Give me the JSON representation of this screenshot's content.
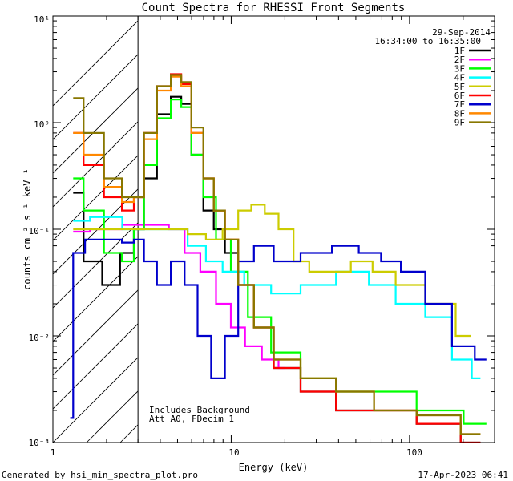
{
  "chart_data": {
    "type": "line",
    "title": "Count Spectra for RHESSI Front Segments",
    "xlabel": "Energy (keV)",
    "ylabel": "counts cm⁻² s⁻¹ keV⁻¹",
    "xscale": "log",
    "yscale": "log",
    "xlim": [
      1,
      300
    ],
    "ylim": [
      0.001,
      10
    ],
    "x_tick_labels": [
      "1",
      "10",
      "100"
    ],
    "y_tick_labels": [
      "10⁰",
      "10⁻¹",
      "10⁻²",
      "10⁻³",
      "10¹"
    ],
    "date_label": "29-Sep-2014",
    "time_range_label": "16:34:00 to 16:35:00",
    "annotations": [
      "Includes Background",
      "Att A0, FDecim 1"
    ],
    "shaded_region_below_keV": 3,
    "legend_position": "top-right",
    "series": [
      {
        "name": "1F",
        "color": "#000000",
        "points": [
          [
            1.3,
            0.22
          ],
          [
            1.7,
            0.05
          ],
          [
            2.1,
            0.03
          ],
          [
            2.7,
            0.06
          ],
          [
            3.0,
            0.1
          ],
          [
            3.5,
            0.3
          ],
          [
            4.2,
            1.2
          ],
          [
            5.0,
            1.75
          ],
          [
            5.5,
            1.5
          ],
          [
            6.5,
            0.5
          ],
          [
            7.5,
            0.15
          ],
          [
            8.5,
            0.1
          ],
          [
            10,
            0.06
          ],
          [
            12,
            0.03
          ],
          [
            15,
            0.012
          ],
          [
            20,
            0.005
          ],
          [
            30,
            0.003
          ],
          [
            50,
            0.002
          ],
          [
            80,
            0.002
          ],
          [
            150,
            0.0015
          ],
          [
            250,
            0.001
          ]
        ]
      },
      {
        "name": "2F",
        "color": "#ff00ff",
        "points": [
          [
            1.3,
            0.095
          ],
          [
            2.0,
            0.1
          ],
          [
            3.0,
            0.11
          ],
          [
            4.0,
            0.11
          ],
          [
            5.0,
            0.1
          ],
          [
            6.0,
            0.06
          ],
          [
            7.5,
            0.04
          ],
          [
            9.0,
            0.02
          ],
          [
            11,
            0.012
          ],
          [
            13,
            0.008
          ],
          [
            17,
            0.006
          ],
          [
            20,
            0.005
          ]
        ]
      },
      {
        "name": "3F",
        "color": "#00ff00",
        "points": [
          [
            1.3,
            0.3
          ],
          [
            1.7,
            0.15
          ],
          [
            2.2,
            0.06
          ],
          [
            2.7,
            0.05
          ],
          [
            3.0,
            0.1
          ],
          [
            3.5,
            0.4
          ],
          [
            4.2,
            1.1
          ],
          [
            5.0,
            1.65
          ],
          [
            5.5,
            1.4
          ],
          [
            6.5,
            0.5
          ],
          [
            7.5,
            0.2
          ],
          [
            9,
            0.08
          ],
          [
            11,
            0.04
          ],
          [
            14,
            0.015
          ],
          [
            20,
            0.007
          ],
          [
            30,
            0.004
          ],
          [
            50,
            0.003
          ],
          [
            80,
            0.003
          ],
          [
            150,
            0.002
          ],
          [
            270,
            0.0015
          ]
        ]
      },
      {
        "name": "4F",
        "color": "#00ffff",
        "points": [
          [
            1.3,
            0.12
          ],
          [
            2.0,
            0.13
          ],
          [
            3.0,
            0.1
          ],
          [
            4.0,
            0.1
          ],
          [
            5.0,
            0.1
          ],
          [
            6.5,
            0.07
          ],
          [
            8,
            0.05
          ],
          [
            10,
            0.04
          ],
          [
            14,
            0.03
          ],
          [
            20,
            0.025
          ],
          [
            30,
            0.03
          ],
          [
            50,
            0.04
          ],
          [
            70,
            0.03
          ],
          [
            100,
            0.02
          ],
          [
            150,
            0.015
          ],
          [
            200,
            0.006
          ],
          [
            250,
            0.004
          ]
        ]
      },
      {
        "name": "5F",
        "color": "#cccc00",
        "points": [
          [
            1.3,
            0.1
          ],
          [
            2.0,
            0.1
          ],
          [
            3.0,
            0.1
          ],
          [
            4.0,
            0.1
          ],
          [
            5.0,
            0.1
          ],
          [
            6.5,
            0.09
          ],
          [
            8,
            0.08
          ],
          [
            10,
            0.1
          ],
          [
            12,
            0.15
          ],
          [
            14,
            0.17
          ],
          [
            17,
            0.14
          ],
          [
            20,
            0.1
          ],
          [
            25,
            0.05
          ],
          [
            30,
            0.04
          ],
          [
            40,
            0.04
          ],
          [
            55,
            0.05
          ],
          [
            70,
            0.04
          ],
          [
            100,
            0.03
          ],
          [
            150,
            0.02
          ],
          [
            220,
            0.01
          ]
        ]
      },
      {
        "name": "6F",
        "color": "#ff0000",
        "points": [
          [
            1.3,
            0.8
          ],
          [
            1.7,
            0.4
          ],
          [
            2.2,
            0.2
          ],
          [
            2.7,
            0.15
          ],
          [
            3.0,
            0.2
          ],
          [
            3.5,
            0.8
          ],
          [
            4.2,
            2.2
          ],
          [
            5.0,
            2.85
          ],
          [
            5.5,
            2.3
          ],
          [
            6.5,
            0.8
          ],
          [
            7.5,
            0.3
          ],
          [
            8.5,
            0.15
          ],
          [
            10,
            0.08
          ],
          [
            12,
            0.03
          ],
          [
            15,
            0.012
          ],
          [
            20,
            0.005
          ],
          [
            30,
            0.003
          ],
          [
            50,
            0.002
          ],
          [
            80,
            0.002
          ],
          [
            150,
            0.0015
          ],
          [
            250,
            0.001
          ]
        ]
      },
      {
        "name": "7F",
        "color": "#0000cc",
        "points": [
          [
            1.25,
            0.0017
          ],
          [
            1.35,
            0.06
          ],
          [
            1.7,
            0.08
          ],
          [
            2.2,
            0.08
          ],
          [
            2.7,
            0.075
          ],
          [
            3.0,
            0.08
          ],
          [
            3.5,
            0.05
          ],
          [
            4.2,
            0.03
          ],
          [
            5.0,
            0.05
          ],
          [
            6,
            0.03
          ],
          [
            7,
            0.01
          ],
          [
            8.5,
            0.004
          ],
          [
            10,
            0.01
          ],
          [
            12,
            0.05
          ],
          [
            15,
            0.07
          ],
          [
            20,
            0.05
          ],
          [
            30,
            0.06
          ],
          [
            45,
            0.07
          ],
          [
            60,
            0.06
          ],
          [
            80,
            0.05
          ],
          [
            100,
            0.04
          ],
          [
            150,
            0.02
          ],
          [
            200,
            0.008
          ],
          [
            270,
            0.006
          ]
        ]
      },
      {
        "name": "8F",
        "color": "#ff8800",
        "points": [
          [
            1.3,
            0.8
          ],
          [
            1.7,
            0.5
          ],
          [
            2.2,
            0.25
          ],
          [
            2.7,
            0.18
          ],
          [
            3.0,
            0.2
          ],
          [
            3.5,
            0.7
          ],
          [
            4.2,
            2.0
          ],
          [
            5.0,
            2.7
          ],
          [
            5.5,
            2.2
          ],
          [
            6.5,
            0.8
          ],
          [
            7.5,
            0.3
          ],
          [
            8.5,
            0.15
          ],
          [
            10,
            0.08
          ],
          [
            12,
            0.03
          ],
          [
            15,
            0.012
          ],
          [
            20,
            0.006
          ],
          [
            30,
            0.004
          ],
          [
            50,
            0.003
          ],
          [
            80,
            0.002
          ],
          [
            150,
            0.0018
          ],
          [
            250,
            0.0012
          ]
        ]
      },
      {
        "name": "9F",
        "color": "#887700",
        "points": [
          [
            1.3,
            1.7
          ],
          [
            1.7,
            0.8
          ],
          [
            2.2,
            0.3
          ],
          [
            2.7,
            0.2
          ],
          [
            3.0,
            0.2
          ],
          [
            3.5,
            0.8
          ],
          [
            4.2,
            2.2
          ],
          [
            5.0,
            2.8
          ],
          [
            5.5,
            2.4
          ],
          [
            6.5,
            0.9
          ],
          [
            7.5,
            0.3
          ],
          [
            8.5,
            0.15
          ],
          [
            10,
            0.08
          ],
          [
            12,
            0.03
          ],
          [
            15,
            0.012
          ],
          [
            20,
            0.006
          ],
          [
            30,
            0.004
          ],
          [
            50,
            0.003
          ],
          [
            80,
            0.002
          ],
          [
            150,
            0.0018
          ],
          [
            250,
            0.0012
          ]
        ]
      }
    ]
  },
  "footer": {
    "left": "Generated by hsi_min_spectra_plot.pro",
    "right": "17-Apr-2023 06:41"
  }
}
